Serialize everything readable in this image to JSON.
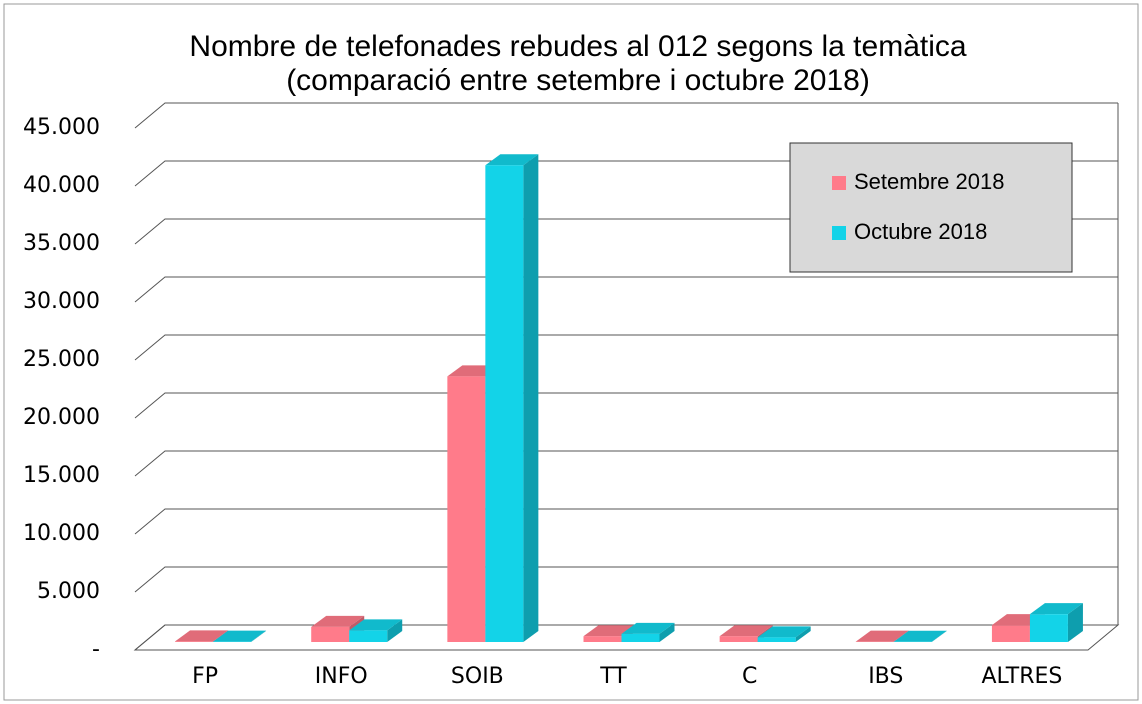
{
  "chart_data": {
    "type": "bar3d",
    "title": [
      "Nombre de telefonades rebudes al 012 segons la temàtica",
      "(comparació entre setembre i octubre 2018)"
    ],
    "categories": [
      "FP",
      "INFO",
      "SOIB",
      "TT",
      "C",
      "IBS",
      "ALTRES"
    ],
    "series": [
      {
        "name": "Setembre 2018",
        "color": "#ff7b8a",
        "values": [
          50,
          1300,
          22900,
          500,
          500,
          30,
          1450
        ]
      },
      {
        "name": "Octubre 2018",
        "color": "#13d3e8",
        "values": [
          30,
          1000,
          41100,
          700,
          400,
          20,
          2400
        ]
      }
    ],
    "ylim": [
      0,
      45000
    ],
    "yticks": [
      {
        "value": 0,
        "label": "-"
      },
      {
        "value": 5000,
        "label": "5.000"
      },
      {
        "value": 10000,
        "label": "10.000"
      },
      {
        "value": 15000,
        "label": "15.000"
      },
      {
        "value": 20000,
        "label": "20.000"
      },
      {
        "value": 25000,
        "label": "25.000"
      },
      {
        "value": 30000,
        "label": "30.000"
      },
      {
        "value": 35000,
        "label": "35.000"
      },
      {
        "value": 40000,
        "label": "40.000"
      },
      {
        "value": 45000,
        "label": "45.000"
      }
    ],
    "grid": true,
    "legend": "upper right"
  }
}
